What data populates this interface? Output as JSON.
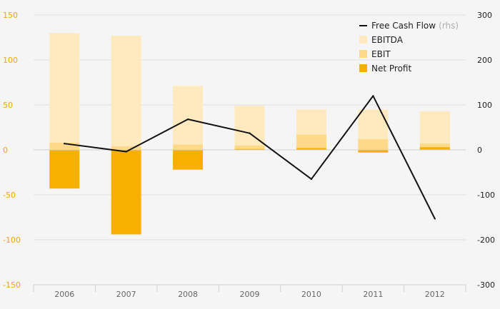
{
  "chart_data": {
    "type": "bar",
    "categories": [
      "2006",
      "2007",
      "2008",
      "2009",
      "2010",
      "2011",
      "2012"
    ],
    "series": [
      {
        "name": "EBITDA",
        "kind": "bar",
        "axis": "left",
        "values": [
          130,
          127,
          71,
          49,
          45,
          45,
          43
        ]
      },
      {
        "name": "EBIT",
        "kind": "bar",
        "axis": "left",
        "values": [
          8,
          4,
          6,
          5,
          17,
          12,
          7
        ]
      },
      {
        "name": "Net Profit",
        "kind": "bar",
        "axis": "left",
        "values": [
          -43,
          -94,
          -22,
          1,
          2,
          -3,
          3
        ]
      },
      {
        "name": "Free Cash Flow",
        "kind": "line",
        "axis": "right",
        "values": [
          14,
          -4,
          68,
          37,
          -65,
          120,
          -153
        ]
      }
    ],
    "legend": {
      "placement": "top-right",
      "items": [
        {
          "label": "Free Cash Flow",
          "sub": "(rhs)",
          "symbol": "line",
          "color": "#111111"
        },
        {
          "label": "EBITDA",
          "sub": "",
          "symbol": "box",
          "color": "#ffeac0"
        },
        {
          "label": "EBIT",
          "sub": "",
          "symbol": "box",
          "color": "#ffd98a"
        },
        {
          "label": "Net Profit",
          "sub": "",
          "symbol": "box",
          "color": "#f8b000"
        }
      ]
    },
    "y_left": {
      "ylim": [
        -150,
        150
      ],
      "ticks": [
        150,
        100,
        50,
        0,
        -50,
        -100,
        -150
      ],
      "color": "#f0a800"
    },
    "y_right": {
      "ylim": [
        -300,
        300
      ],
      "ticks": [
        300,
        200,
        100,
        0,
        -100,
        -200,
        -300
      ],
      "color": "#222222"
    },
    "grid": true,
    "colors": {
      "ebitda": "#ffeac0",
      "ebit": "#ffd98a",
      "net_profit": "#f8b000",
      "fcf_line": "#111111",
      "grid": "#dedede",
      "background": "#f5f5f5"
    }
  }
}
